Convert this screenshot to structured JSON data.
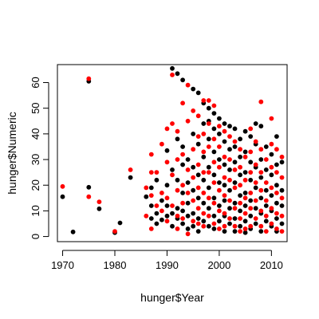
{
  "chart_data": {
    "type": "scatter",
    "title": "",
    "xlabel": "hunger$Year",
    "ylabel": "hunger$Numeric",
    "xlim": [
      1969,
      2013
    ],
    "ylim": [
      -2,
      67
    ],
    "xticks": [
      1970,
      1980,
      1990,
      2000,
      2010
    ],
    "yticks": [
      0,
      10,
      20,
      30,
      40,
      50,
      60
    ],
    "grid": false,
    "legend": "none",
    "colors": {
      "black": "#000000",
      "red": "#ff0000"
    },
    "series": [
      {
        "color": "black",
        "points": [
          [
            1970,
            15.5
          ],
          [
            1972,
            1.8
          ],
          [
            1975,
            60.5
          ],
          [
            1975,
            19.2
          ],
          [
            1977,
            10.8
          ],
          [
            1980,
            1.5
          ],
          [
            1981,
            5.3
          ],
          [
            1983,
            23
          ],
          [
            1986,
            15.5
          ],
          [
            1987,
            19
          ],
          [
            1987,
            12
          ],
          [
            1987,
            7
          ],
          [
            1988,
            22
          ],
          [
            1988,
            9
          ],
          [
            1988,
            5
          ],
          [
            1989,
            14
          ],
          [
            1989,
            6.5
          ],
          [
            1990,
            33.5
          ],
          [
            1990,
            20
          ],
          [
            1990,
            12
          ],
          [
            1990,
            8
          ],
          [
            1991,
            65.5
          ],
          [
            1991,
            26
          ],
          [
            1991,
            9
          ],
          [
            1991,
            4
          ],
          [
            1992,
            63.5
          ],
          [
            1992,
            38
          ],
          [
            1992,
            22
          ],
          [
            1992,
            11
          ],
          [
            1992,
            7
          ],
          [
            1993,
            61
          ],
          [
            1993,
            35
          ],
          [
            1993,
            28
          ],
          [
            1993,
            17
          ],
          [
            1993,
            10
          ],
          [
            1993,
            5
          ],
          [
            1994,
            30
          ],
          [
            1994,
            21
          ],
          [
            1994,
            13
          ],
          [
            1994,
            8
          ],
          [
            1994,
            3
          ],
          [
            1995,
            57.5
          ],
          [
            1995,
            40
          ],
          [
            1995,
            27
          ],
          [
            1995,
            18
          ],
          [
            1995,
            9
          ],
          [
            1995,
            4
          ],
          [
            1996,
            56
          ],
          [
            1996,
            36
          ],
          [
            1996,
            24
          ],
          [
            1996,
            15
          ],
          [
            1996,
            7
          ],
          [
            1996,
            2
          ],
          [
            1997,
            52
          ],
          [
            1997,
            44
          ],
          [
            1997,
            31
          ],
          [
            1997,
            22
          ],
          [
            1997,
            13
          ],
          [
            1997,
            6
          ],
          [
            1998,
            50
          ],
          [
            1998,
            45
          ],
          [
            1998,
            38
          ],
          [
            1998,
            27
          ],
          [
            1998,
            19
          ],
          [
            1998,
            11
          ],
          [
            1998,
            4
          ],
          [
            1999,
            48
          ],
          [
            1999,
            42
          ],
          [
            1999,
            33
          ],
          [
            1999,
            24
          ],
          [
            1999,
            15
          ],
          [
            1999,
            8
          ],
          [
            1999,
            3
          ],
          [
            2000,
            46
          ],
          [
            2000,
            40
          ],
          [
            2000,
            30
          ],
          [
            2000,
            21
          ],
          [
            2000,
            12
          ],
          [
            2000,
            6
          ],
          [
            2001,
            44
          ],
          [
            2001,
            37
          ],
          [
            2001,
            28
          ],
          [
            2001,
            20
          ],
          [
            2001,
            14
          ],
          [
            2001,
            8
          ],
          [
            2001,
            2
          ],
          [
            2002,
            43
          ],
          [
            2002,
            34
          ],
          [
            2002,
            26
          ],
          [
            2002,
            18
          ],
          [
            2002,
            11
          ],
          [
            2002,
            5
          ],
          [
            2003,
            42
          ],
          [
            2003,
            35
          ],
          [
            2003,
            29
          ],
          [
            2003,
            21
          ],
          [
            2003,
            13
          ],
          [
            2003,
            7
          ],
          [
            2003,
            2
          ],
          [
            2004,
            38
          ],
          [
            2004,
            31
          ],
          [
            2004,
            24
          ],
          [
            2004,
            16
          ],
          [
            2004,
            10
          ],
          [
            2004,
            4
          ],
          [
            2005,
            41
          ],
          [
            2005,
            33
          ],
          [
            2005,
            25
          ],
          [
            2005,
            17
          ],
          [
            2005,
            12
          ],
          [
            2005,
            6
          ],
          [
            2005,
            1.5
          ],
          [
            2006,
            39
          ],
          [
            2006,
            29
          ],
          [
            2006,
            22
          ],
          [
            2006,
            14
          ],
          [
            2006,
            8
          ],
          [
            2006,
            3
          ],
          [
            2007,
            44
          ],
          [
            2007,
            36
          ],
          [
            2007,
            27
          ],
          [
            2007,
            19
          ],
          [
            2007,
            11
          ],
          [
            2007,
            5
          ],
          [
            2008,
            43
          ],
          [
            2008,
            30
          ],
          [
            2008,
            23
          ],
          [
            2008,
            15
          ],
          [
            2008,
            9
          ],
          [
            2008,
            2
          ],
          [
            2009,
            35
          ],
          [
            2009,
            26
          ],
          [
            2009,
            18
          ],
          [
            2009,
            12
          ],
          [
            2009,
            6
          ],
          [
            2010,
            32
          ],
          [
            2010,
            24
          ],
          [
            2010,
            16
          ],
          [
            2010,
            10
          ],
          [
            2010,
            4
          ],
          [
            2011,
            39
          ],
          [
            2011,
            28
          ],
          [
            2011,
            20
          ],
          [
            2011,
            13
          ],
          [
            2011,
            7
          ],
          [
            2011,
            2
          ],
          [
            2012,
            29
          ],
          [
            2012,
            18
          ],
          [
            2012,
            12
          ],
          [
            2012,
            5
          ]
        ]
      },
      {
        "color": "red",
        "points": [
          [
            1970,
            19.5
          ],
          [
            1975,
            61.5
          ],
          [
            1975,
            15.5
          ],
          [
            1977,
            13.5
          ],
          [
            1980,
            2
          ],
          [
            1983,
            26
          ],
          [
            1986,
            19
          ],
          [
            1986,
            8
          ],
          [
            1987,
            32
          ],
          [
            1987,
            25
          ],
          [
            1987,
            16
          ],
          [
            1987,
            3
          ],
          [
            1988,
            25
          ],
          [
            1988,
            12
          ],
          [
            1989,
            36
          ],
          [
            1989,
            17
          ],
          [
            1989,
            10
          ],
          [
            1990,
            42
          ],
          [
            1990,
            29
          ],
          [
            1990,
            15
          ],
          [
            1990,
            6
          ],
          [
            1991,
            63
          ],
          [
            1991,
            44
          ],
          [
            1991,
            24
          ],
          [
            1991,
            12
          ],
          [
            1992,
            41
          ],
          [
            1992,
            30
          ],
          [
            1992,
            18
          ],
          [
            1992,
            8
          ],
          [
            1992,
            3
          ],
          [
            1993,
            52
          ],
          [
            1993,
            32
          ],
          [
            1993,
            20
          ],
          [
            1993,
            13
          ],
          [
            1993,
            7
          ],
          [
            1994,
            59
          ],
          [
            1994,
            45
          ],
          [
            1994,
            26
          ],
          [
            1994,
            17
          ],
          [
            1994,
            1
          ],
          [
            1995,
            49
          ],
          [
            1995,
            34
          ],
          [
            1995,
            23
          ],
          [
            1995,
            14
          ],
          [
            1995,
            6
          ],
          [
            1996,
            47
          ],
          [
            1996,
            39
          ],
          [
            1996,
            28
          ],
          [
            1996,
            19
          ],
          [
            1996,
            11
          ],
          [
            1996,
            5
          ],
          [
            1997,
            53
          ],
          [
            1997,
            40
          ],
          [
            1997,
            33
          ],
          [
            1997,
            25
          ],
          [
            1997,
            17
          ],
          [
            1997,
            9
          ],
          [
            1997,
            4
          ],
          [
            1998,
            53
          ],
          [
            1998,
            44
          ],
          [
            1998,
            35
          ],
          [
            1998,
            25
          ],
          [
            1998,
            15
          ],
          [
            1998,
            8
          ],
          [
            1999,
            51
          ],
          [
            1999,
            38
          ],
          [
            1999,
            29
          ],
          [
            1999,
            21
          ],
          [
            1999,
            13
          ],
          [
            1999,
            5
          ],
          [
            2000,
            43
          ],
          [
            2000,
            35
          ],
          [
            2000,
            27
          ],
          [
            2000,
            18
          ],
          [
            2000,
            10
          ],
          [
            2000,
            3
          ],
          [
            2001,
            41
          ],
          [
            2001,
            31
          ],
          [
            2001,
            23
          ],
          [
            2001,
            16
          ],
          [
            2001,
            9
          ],
          [
            2001,
            4
          ],
          [
            2002,
            39
          ],
          [
            2002,
            30
          ],
          [
            2002,
            22
          ],
          [
            2002,
            14
          ],
          [
            2002,
            7
          ],
          [
            2003,
            37
          ],
          [
            2003,
            26
          ],
          [
            2003,
            19
          ],
          [
            2003,
            11
          ],
          [
            2003,
            4
          ],
          [
            2004,
            34
          ],
          [
            2004,
            27
          ],
          [
            2004,
            20
          ],
          [
            2004,
            13
          ],
          [
            2004,
            7
          ],
          [
            2004,
            2
          ],
          [
            2005,
            31
          ],
          [
            2005,
            22
          ],
          [
            2005,
            15
          ],
          [
            2005,
            9
          ],
          [
            2005,
            3
          ],
          [
            2006,
            42
          ],
          [
            2006,
            33
          ],
          [
            2006,
            25
          ],
          [
            2006,
            17
          ],
          [
            2006,
            11
          ],
          [
            2006,
            4
          ],
          [
            2007,
            37
          ],
          [
            2007,
            28
          ],
          [
            2007,
            21
          ],
          [
            2007,
            14
          ],
          [
            2007,
            7
          ],
          [
            2008,
            52.5
          ],
          [
            2008,
            34
          ],
          [
            2008,
            25
          ],
          [
            2008,
            18
          ],
          [
            2008,
            10
          ],
          [
            2008,
            4
          ],
          [
            2009,
            30
          ],
          [
            2009,
            21
          ],
          [
            2009,
            14
          ],
          [
            2009,
            8
          ],
          [
            2009,
            2
          ],
          [
            2010,
            46
          ],
          [
            2010,
            36
          ],
          [
            2010,
            27
          ],
          [
            2010,
            19
          ],
          [
            2010,
            11
          ],
          [
            2010,
            5
          ],
          [
            2011,
            34
          ],
          [
            2011,
            25
          ],
          [
            2011,
            17
          ],
          [
            2011,
            9
          ],
          [
            2011,
            3
          ],
          [
            2012,
            31
          ],
          [
            2012,
            23
          ],
          [
            2012,
            15
          ],
          [
            2012,
            8
          ],
          [
            2012,
            2
          ]
        ]
      }
    ]
  }
}
